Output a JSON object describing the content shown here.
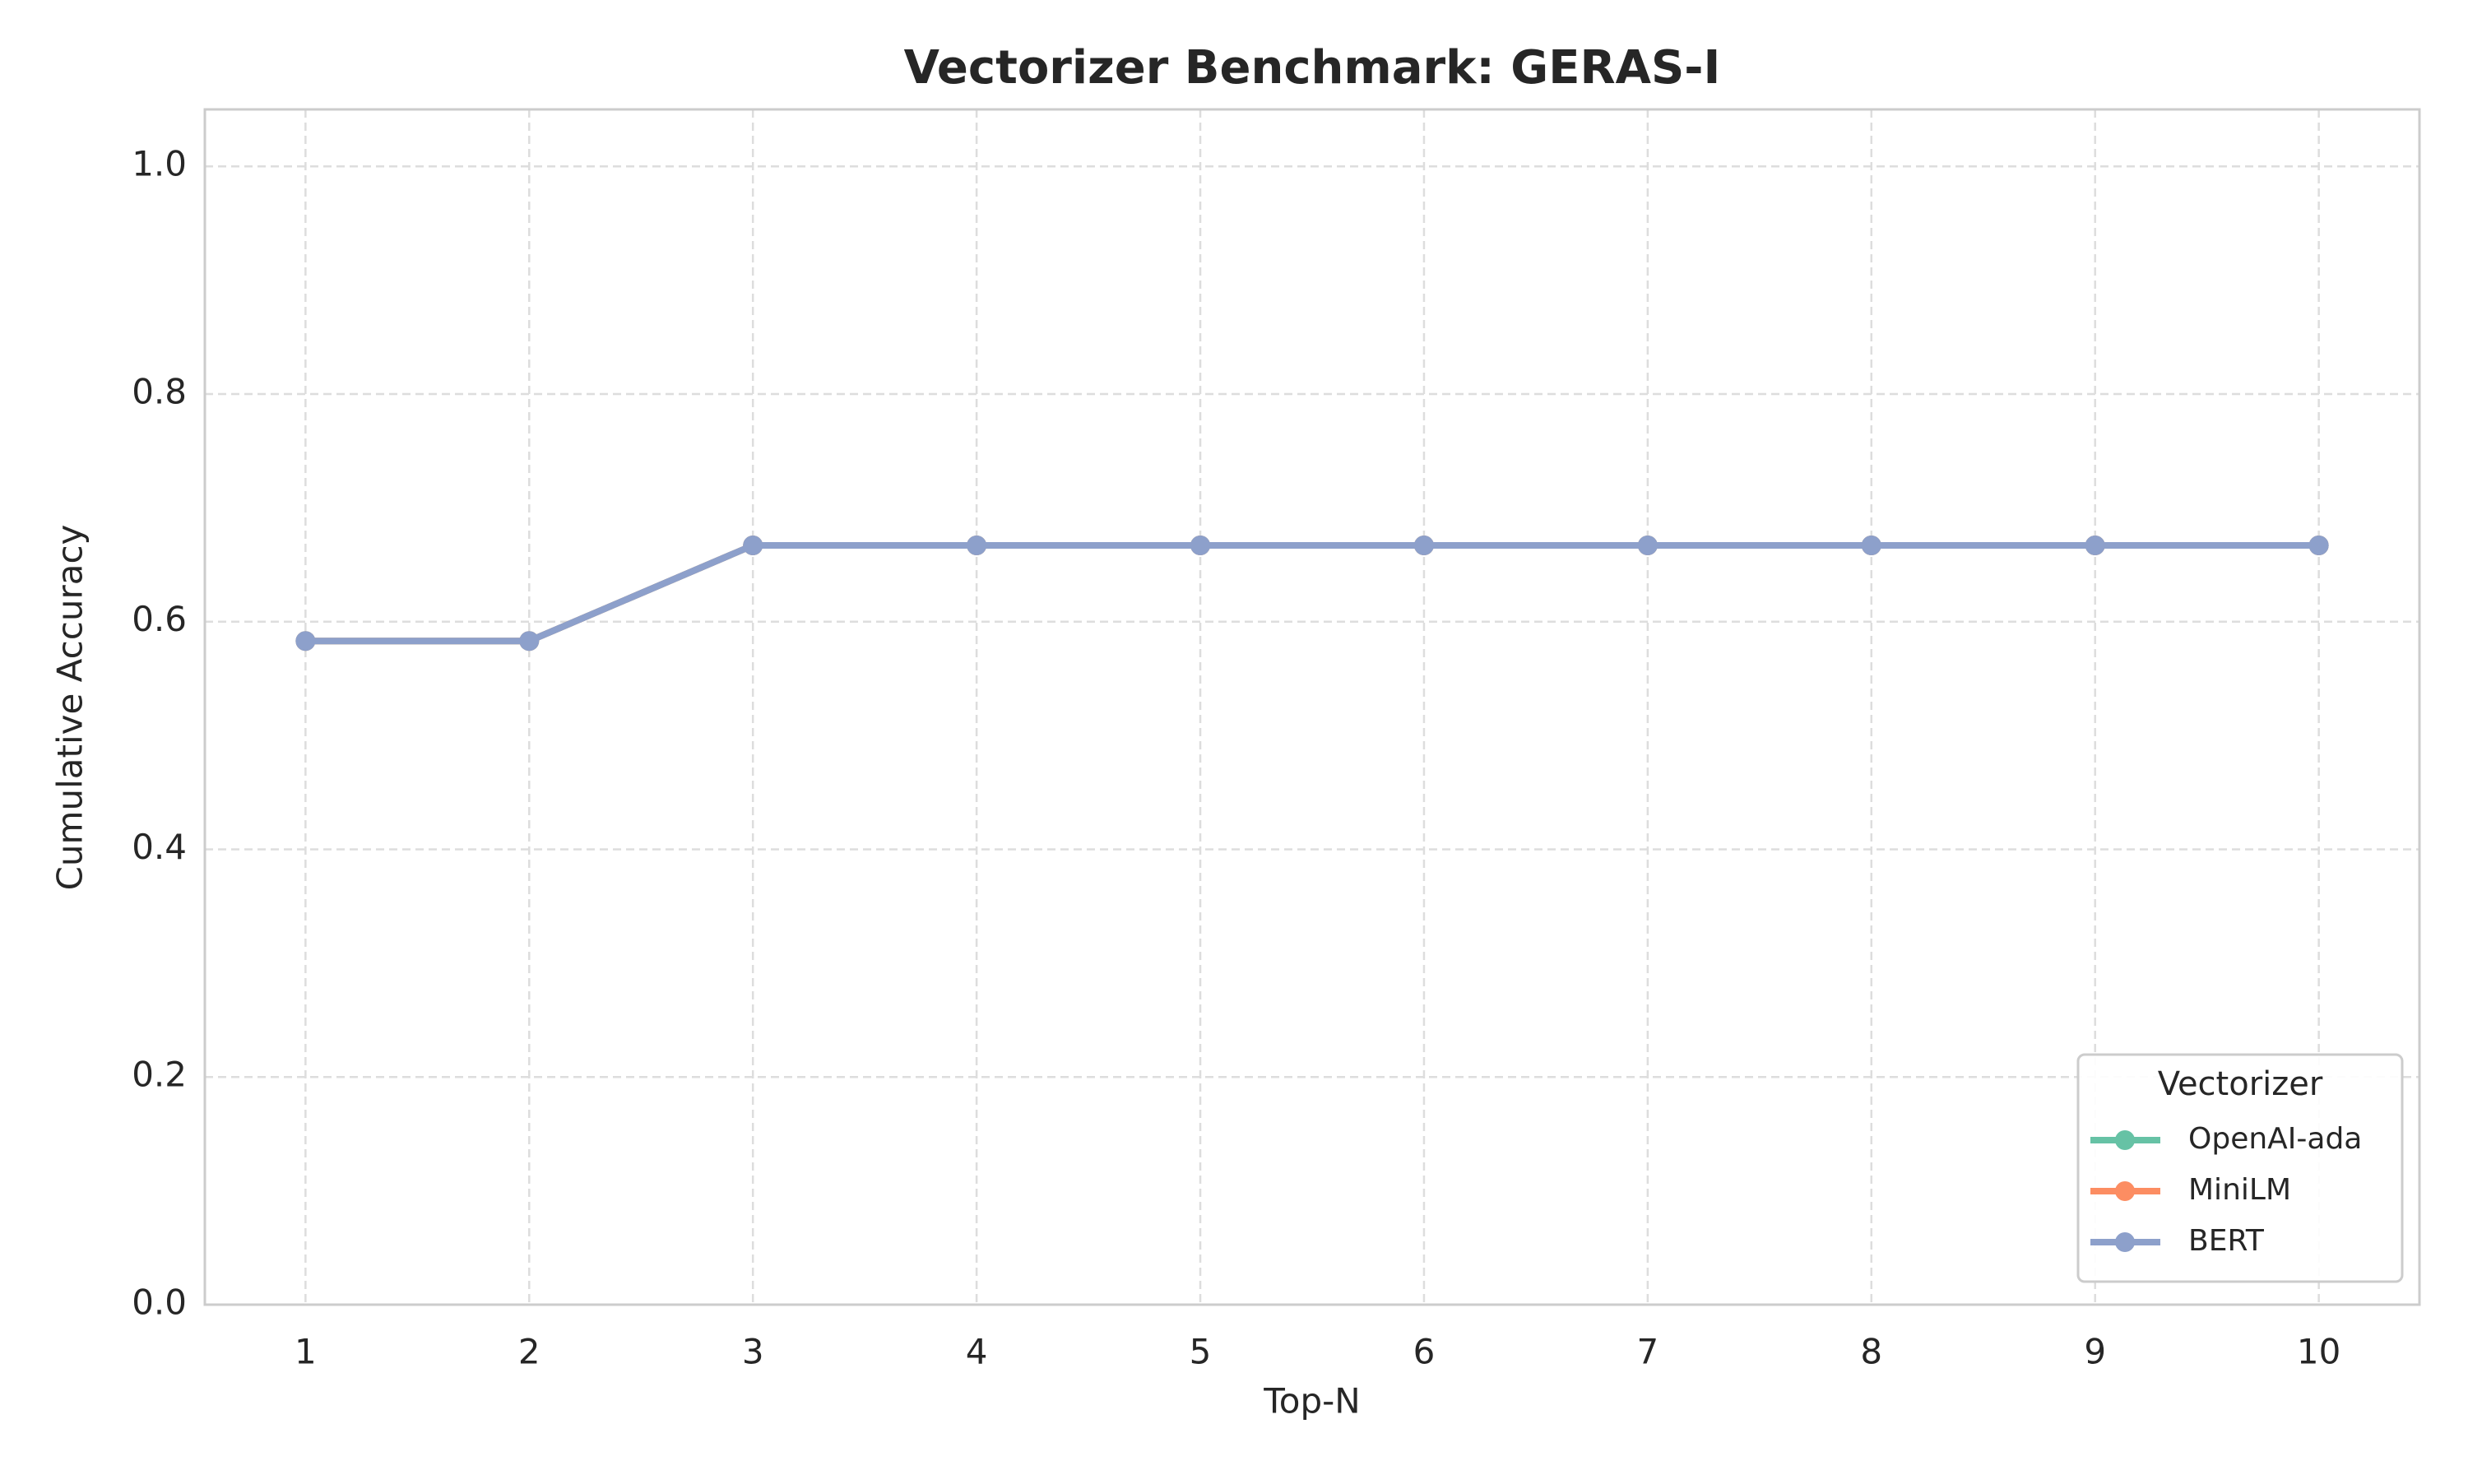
{
  "chart_data": {
    "type": "line",
    "title": "Vectorizer Benchmark: GERAS-I",
    "xlabel": "Top-N",
    "ylabel": "Cumulative Accuracy",
    "x": [
      1,
      2,
      3,
      4,
      5,
      6,
      7,
      8,
      9,
      10
    ],
    "series": [
      {
        "name": "OpenAI-ada",
        "color": "#66c2a5",
        "values": [
          0.583,
          0.583,
          0.667,
          0.667,
          0.667,
          0.667,
          0.667,
          0.667,
          0.667,
          0.667
        ]
      },
      {
        "name": "MiniLM",
        "color": "#fc8d62",
        "values": [
          0.583,
          0.583,
          0.667,
          0.667,
          0.667,
          0.667,
          0.667,
          0.667,
          0.667,
          0.667
        ]
      },
      {
        "name": "BERT",
        "color": "#8da0cb",
        "values": [
          0.583,
          0.583,
          0.667,
          0.667,
          0.667,
          0.667,
          0.667,
          0.667,
          0.667,
          0.667
        ]
      }
    ],
    "xlim": [
      0.55,
      10.45
    ],
    "xticks": [
      1,
      2,
      3,
      4,
      5,
      6,
      7,
      8,
      9,
      10
    ],
    "ylim": [
      0,
      1.05
    ],
    "yticks": [
      {
        "value": 0,
        "label": "0.0"
      },
      {
        "value": 0.2,
        "label": "0.2"
      },
      {
        "value": 0.4,
        "label": "0.4"
      },
      {
        "value": 0.6,
        "label": "0.6"
      },
      {
        "value": 0.8,
        "label": "0.8"
      },
      {
        "value": 1.0,
        "label": "1.0"
      }
    ],
    "grid": true,
    "legend_title": "Vectorizer",
    "legend_loc": "lower right"
  }
}
